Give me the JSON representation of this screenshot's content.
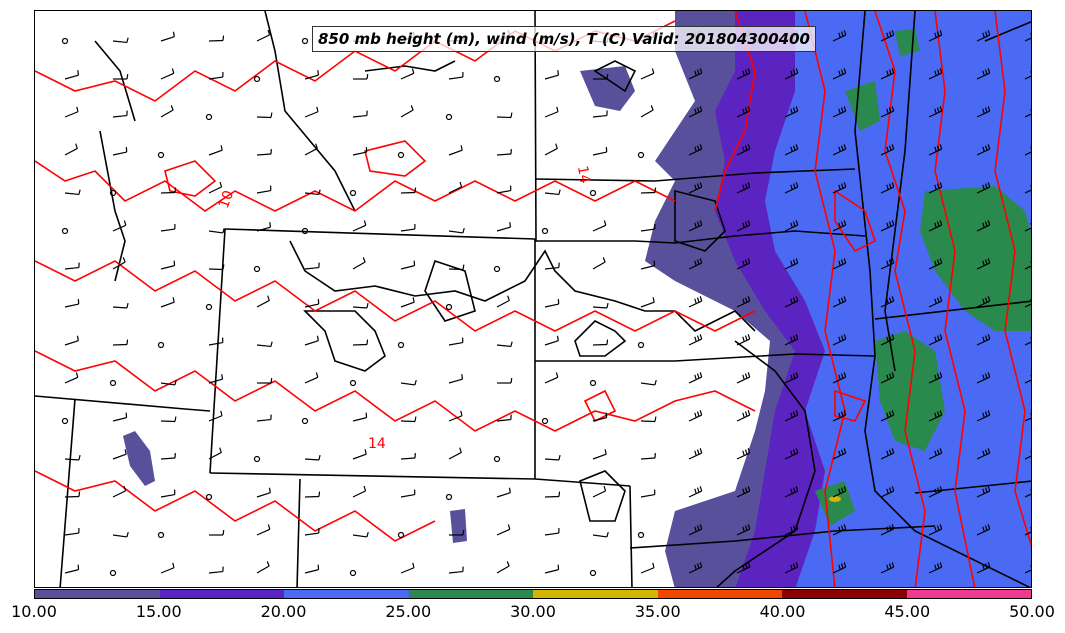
{
  "title": "850 mb height (m), wind (m/s), T (C) Valid: 201804300400",
  "contour_labels": [
    "10",
    "14",
    "14"
  ],
  "colorbar": {
    "bins": [
      {
        "from": 10,
        "to": 15,
        "color": "#58509a"
      },
      {
        "from": 15,
        "to": 20,
        "color": "#5b23c0"
      },
      {
        "from": 20,
        "to": 25,
        "color": "#4b6af3"
      },
      {
        "from": 25,
        "to": 30,
        "color": "#2a8a4d"
      },
      {
        "from": 30,
        "to": 35,
        "color": "#d4b500"
      },
      {
        "from": 35,
        "to": 40,
        "color": "#f04800"
      },
      {
        "from": 40,
        "to": 45,
        "color": "#8b0000"
      },
      {
        "from": 45,
        "to": 50,
        "color": "#f0398f"
      }
    ],
    "tick_labels": [
      "10.00",
      "15.00",
      "20.00",
      "25.00",
      "30.00",
      "35.00",
      "40.00",
      "45.00",
      "50.00"
    ]
  },
  "colors": {
    "temperature_contour": "#ff0000",
    "height_contour": "#000000",
    "boundaries": "#000000",
    "wind_barbs": "#000000"
  }
}
